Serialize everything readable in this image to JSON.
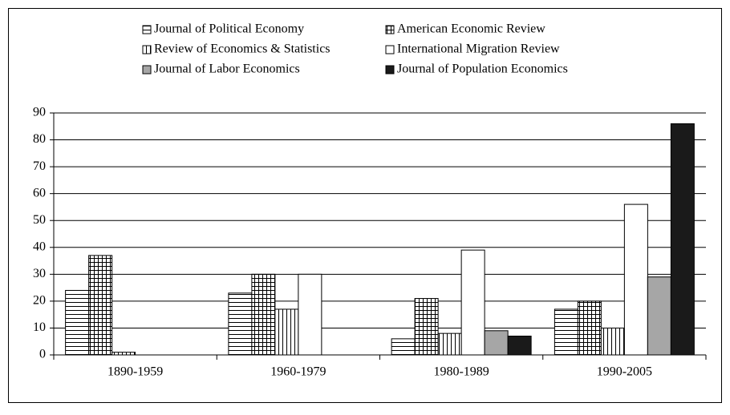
{
  "chart_data": {
    "type": "bar",
    "categories": [
      "1890-1959",
      "1960-1979",
      "1980-1989",
      "1990-2005"
    ],
    "series": [
      {
        "name": "Journal of Political Economy",
        "color": "#ffffff",
        "pattern": "horizontal",
        "values": [
          24,
          23,
          6,
          17
        ]
      },
      {
        "name": "American Economic Review",
        "color": "#ffffff",
        "pattern": "grid",
        "values": [
          37,
          30,
          21,
          20
        ]
      },
      {
        "name": "Review of Economics & Statistics",
        "color": "#ffffff",
        "pattern": "vertical",
        "values": [
          1,
          17,
          8,
          10
        ]
      },
      {
        "name": "International Migration Review",
        "color": "#ffffff",
        "values": [
          0,
          30,
          39,
          56
        ]
      },
      {
        "name": "Journal of Labor Economics",
        "color": "#a6a6a6",
        "values": [
          0,
          0,
          9,
          29
        ]
      },
      {
        "name": "Journal of Population Economics",
        "color": "#1a1a1a",
        "values": [
          0,
          0,
          7,
          86
        ]
      }
    ],
    "ylim": [
      0,
      90
    ],
    "yticks": [
      0,
      10,
      20,
      30,
      40,
      50,
      60,
      70,
      80,
      90
    ],
    "grid": true,
    "legend": "top"
  }
}
